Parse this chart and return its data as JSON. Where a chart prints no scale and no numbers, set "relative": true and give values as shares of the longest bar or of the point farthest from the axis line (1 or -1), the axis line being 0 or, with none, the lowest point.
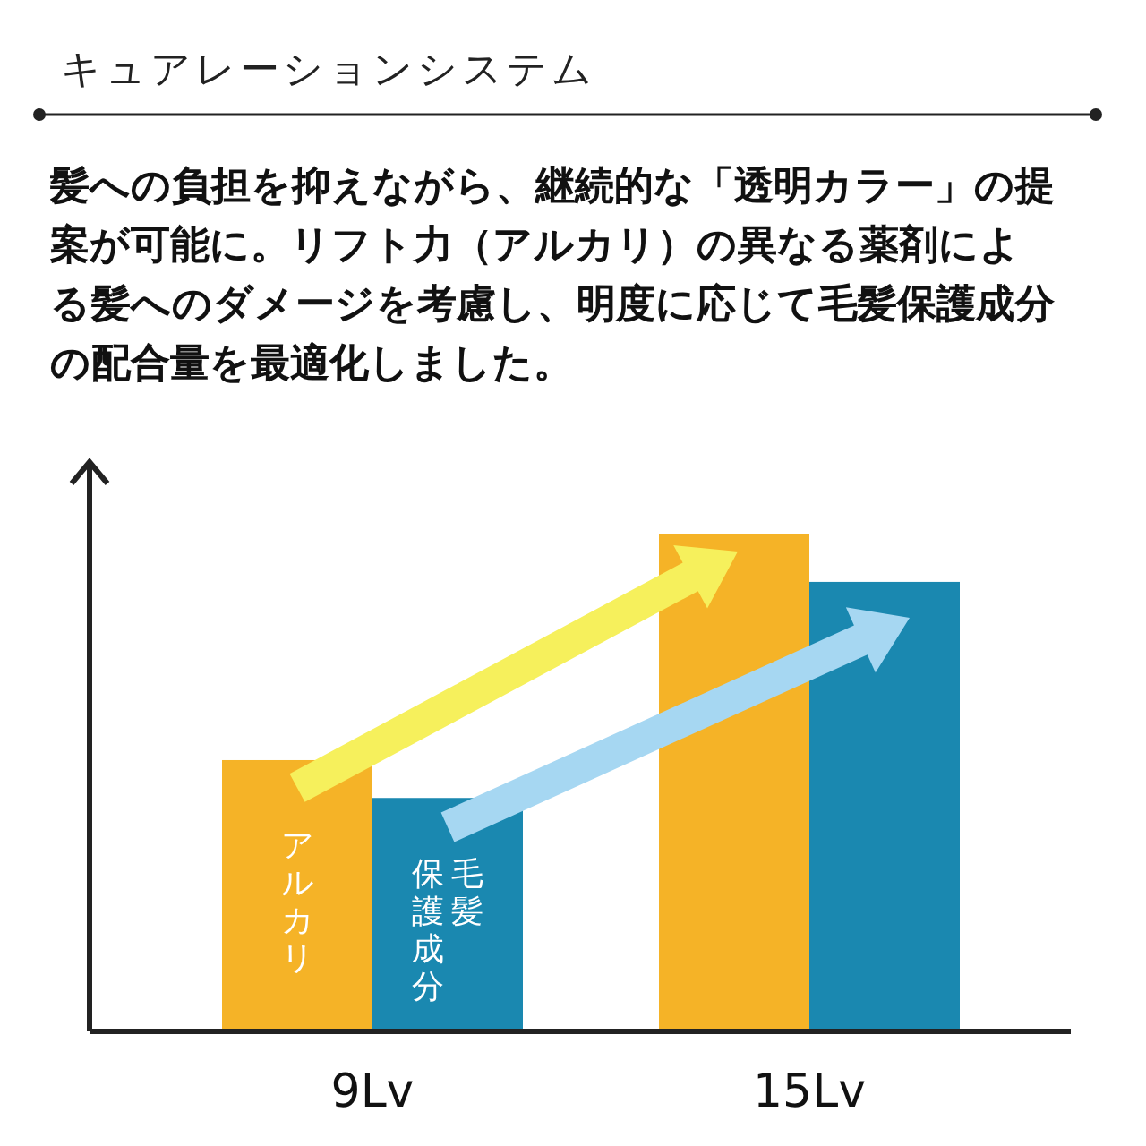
{
  "chart_data": {
    "type": "bar",
    "relative": true,
    "title": "キュアレーションシステム",
    "subtitle": "髪への負担を抑えながら、継続的な「透明カラー」の提案が可能に。リフト力（アルカリ）の異なる薬剤による髪へのダメージを考慮し、明度に応じて毛髪保護成分の配合量を最適化しました。",
    "categories": [
      "9Lv",
      "15Lv"
    ],
    "series": [
      {
        "name": "アルカリ",
        "color": "#f5b327",
        "values": [
          0.545,
          1
        ]
      },
      {
        "name": "毛髪保護成分",
        "color": "#1a88b0",
        "values": [
          0.469,
          0.903
        ]
      }
    ]
  }
}
